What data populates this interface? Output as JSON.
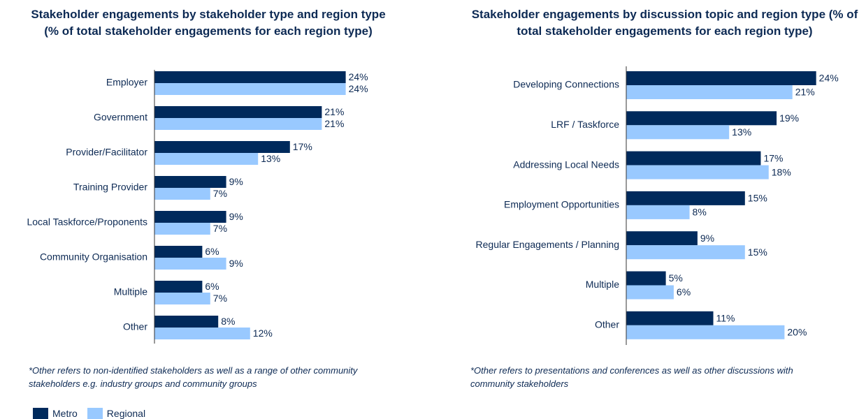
{
  "chart_data": [
    {
      "type": "bar",
      "orientation": "horizontal",
      "title": "Stakeholder engagements by stakeholder type and region type (% of total stakeholder engagements for each region type)",
      "categories": [
        "Employer",
        "Government",
        "Provider/Facilitator",
        "Training Provider",
        "Local Taskforce/Proponents",
        "Community Organisation",
        "Multiple",
        "Other"
      ],
      "series": [
        {
          "name": "Metro",
          "color": "#002a5c",
          "values": [
            24,
            21,
            17,
            9,
            9,
            6,
            6,
            8
          ],
          "value_labels": [
            "24%",
            "21%",
            "17%",
            "9%",
            "9%",
            "6%",
            "6%",
            "8%"
          ]
        },
        {
          "name": "Regional",
          "color": "#99c9ff",
          "values": [
            24,
            21,
            13,
            7,
            7,
            9,
            7,
            12
          ],
          "value_labels": [
            "24%",
            "21%",
            "13%",
            "7%",
            "7%",
            "9%",
            "7%",
            "12%"
          ]
        }
      ],
      "xlim": [
        0,
        25
      ],
      "footnote": "*Other refers to non-identified stakeholders as well as a range of other community stakeholders e.g. industry groups and community groups"
    },
    {
      "type": "bar",
      "orientation": "horizontal",
      "title": "Stakeholder engagements by discussion topic and region type (% of total stakeholder engagements for each region type)",
      "categories": [
        "Developing Connections",
        "LRF / Taskforce",
        "Addressing Local Needs",
        "Employment Opportunities",
        "Regular Engagements / Planning",
        "Multiple",
        "Other"
      ],
      "series": [
        {
          "name": "Metro",
          "color": "#002a5c",
          "values": [
            24,
            19,
            17,
            15,
            9,
            5,
            11
          ],
          "value_labels": [
            "24%",
            "19%",
            "17%",
            "15%",
            "9%",
            "5%",
            "11%"
          ]
        },
        {
          "name": "Regional",
          "color": "#99c9ff",
          "values": [
            21,
            13,
            18,
            8,
            15,
            6,
            20
          ],
          "value_labels": [
            "21%",
            "13%",
            "18%",
            "8%",
            "15%",
            "6%",
            "20%"
          ]
        }
      ],
      "xlim": [
        0,
        25
      ],
      "footnote": "*Other refers to presentations and conferences as well as other discussions with community stakeholders"
    }
  ]
}
